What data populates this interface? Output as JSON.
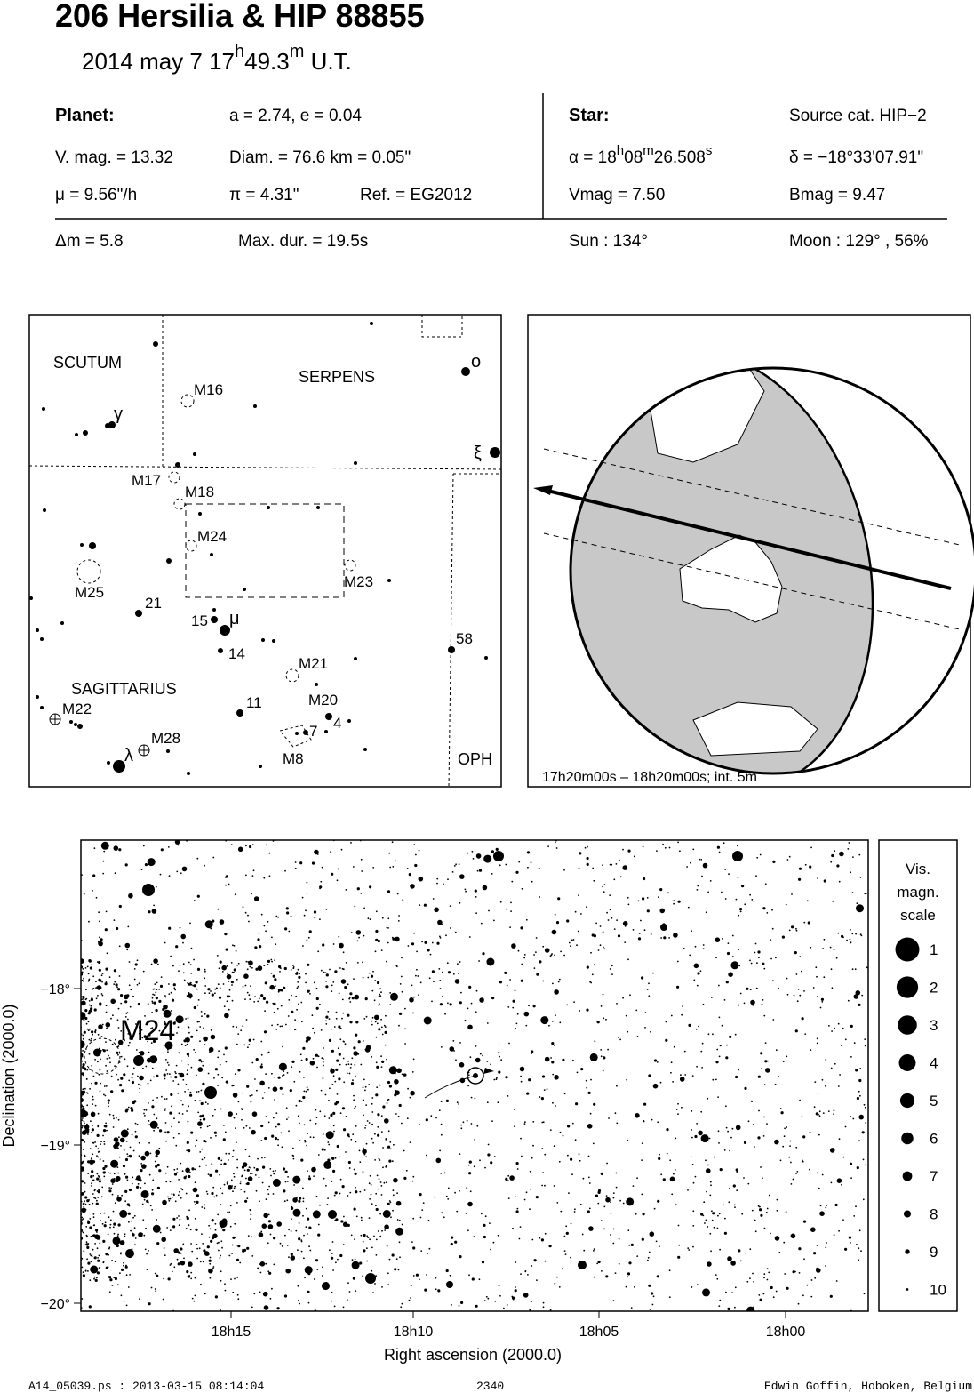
{
  "header": {
    "title": "206 Hersilia  &  HIP 88855",
    "date_parts": [
      "2014 may  7  17",
      "h",
      "49.3",
      "m",
      " U.T."
    ]
  },
  "info": {
    "planet_heading": "Planet:",
    "orbit": "a = 2.74, e = 0.04",
    "vmag": "V. mag. = 13.32",
    "diam": "Diam. = 76.6 km = 0.05\"",
    "mu": "μ =  9.56\"/h",
    "pi": "π =  4.31\"",
    "ref": "Ref. = EG2012",
    "star_heading": "Star:",
    "source": "Source cat.  HIP−2",
    "alpha_parts": [
      "α = 18",
      "h",
      "08",
      "m",
      "26.508",
      "s"
    ],
    "delta": "δ = −18°33'07.91\"",
    "star_vmag": "Vmag =  7.50",
    "bmag": "Bmag =  9.47",
    "dm": "Δm = 5.8",
    "maxdur": "Max. dur. = 19.5s",
    "sun": "Sun : 134°",
    "moon": "Moon : 129° , 56%"
  },
  "finder": {
    "labels": [
      "SCUTUM",
      "SERPENS",
      "M16",
      "γ",
      "ο",
      "ξ",
      "M17",
      "M18",
      "M24",
      "M25",
      "M23",
      "21",
      "15",
      "μ",
      "14",
      "58",
      "M21",
      "SAGITTARIUS",
      "M20",
      "M22",
      "11",
      "7",
      "4",
      "M28",
      "λ",
      "M8",
      "OPH"
    ]
  },
  "globe": {
    "caption": "17h20m00s – 18h20m00s; int.  5m"
  },
  "star_chart": {
    "object_label": "M24",
    "x_axis_label": "Right ascension (2000.0)",
    "y_axis_label": "Declination (2000.0)",
    "xticks": [
      "18h15",
      "18h10",
      "18h05",
      "18h00"
    ],
    "yticks": [
      "−18°",
      "−19°",
      "−20°"
    ]
  },
  "magnitude_scale": {
    "title_lines": [
      "Vis.",
      "magn.",
      "scale"
    ],
    "magnitudes": [
      1,
      2,
      3,
      4,
      5,
      6,
      7,
      8,
      9,
      10
    ]
  },
  "footer": {
    "file": "A14_05039.ps : 2013-03-15 08:14:04",
    "number": "2340",
    "author": "Edwin Goffin, Hoboken, Belgium"
  }
}
